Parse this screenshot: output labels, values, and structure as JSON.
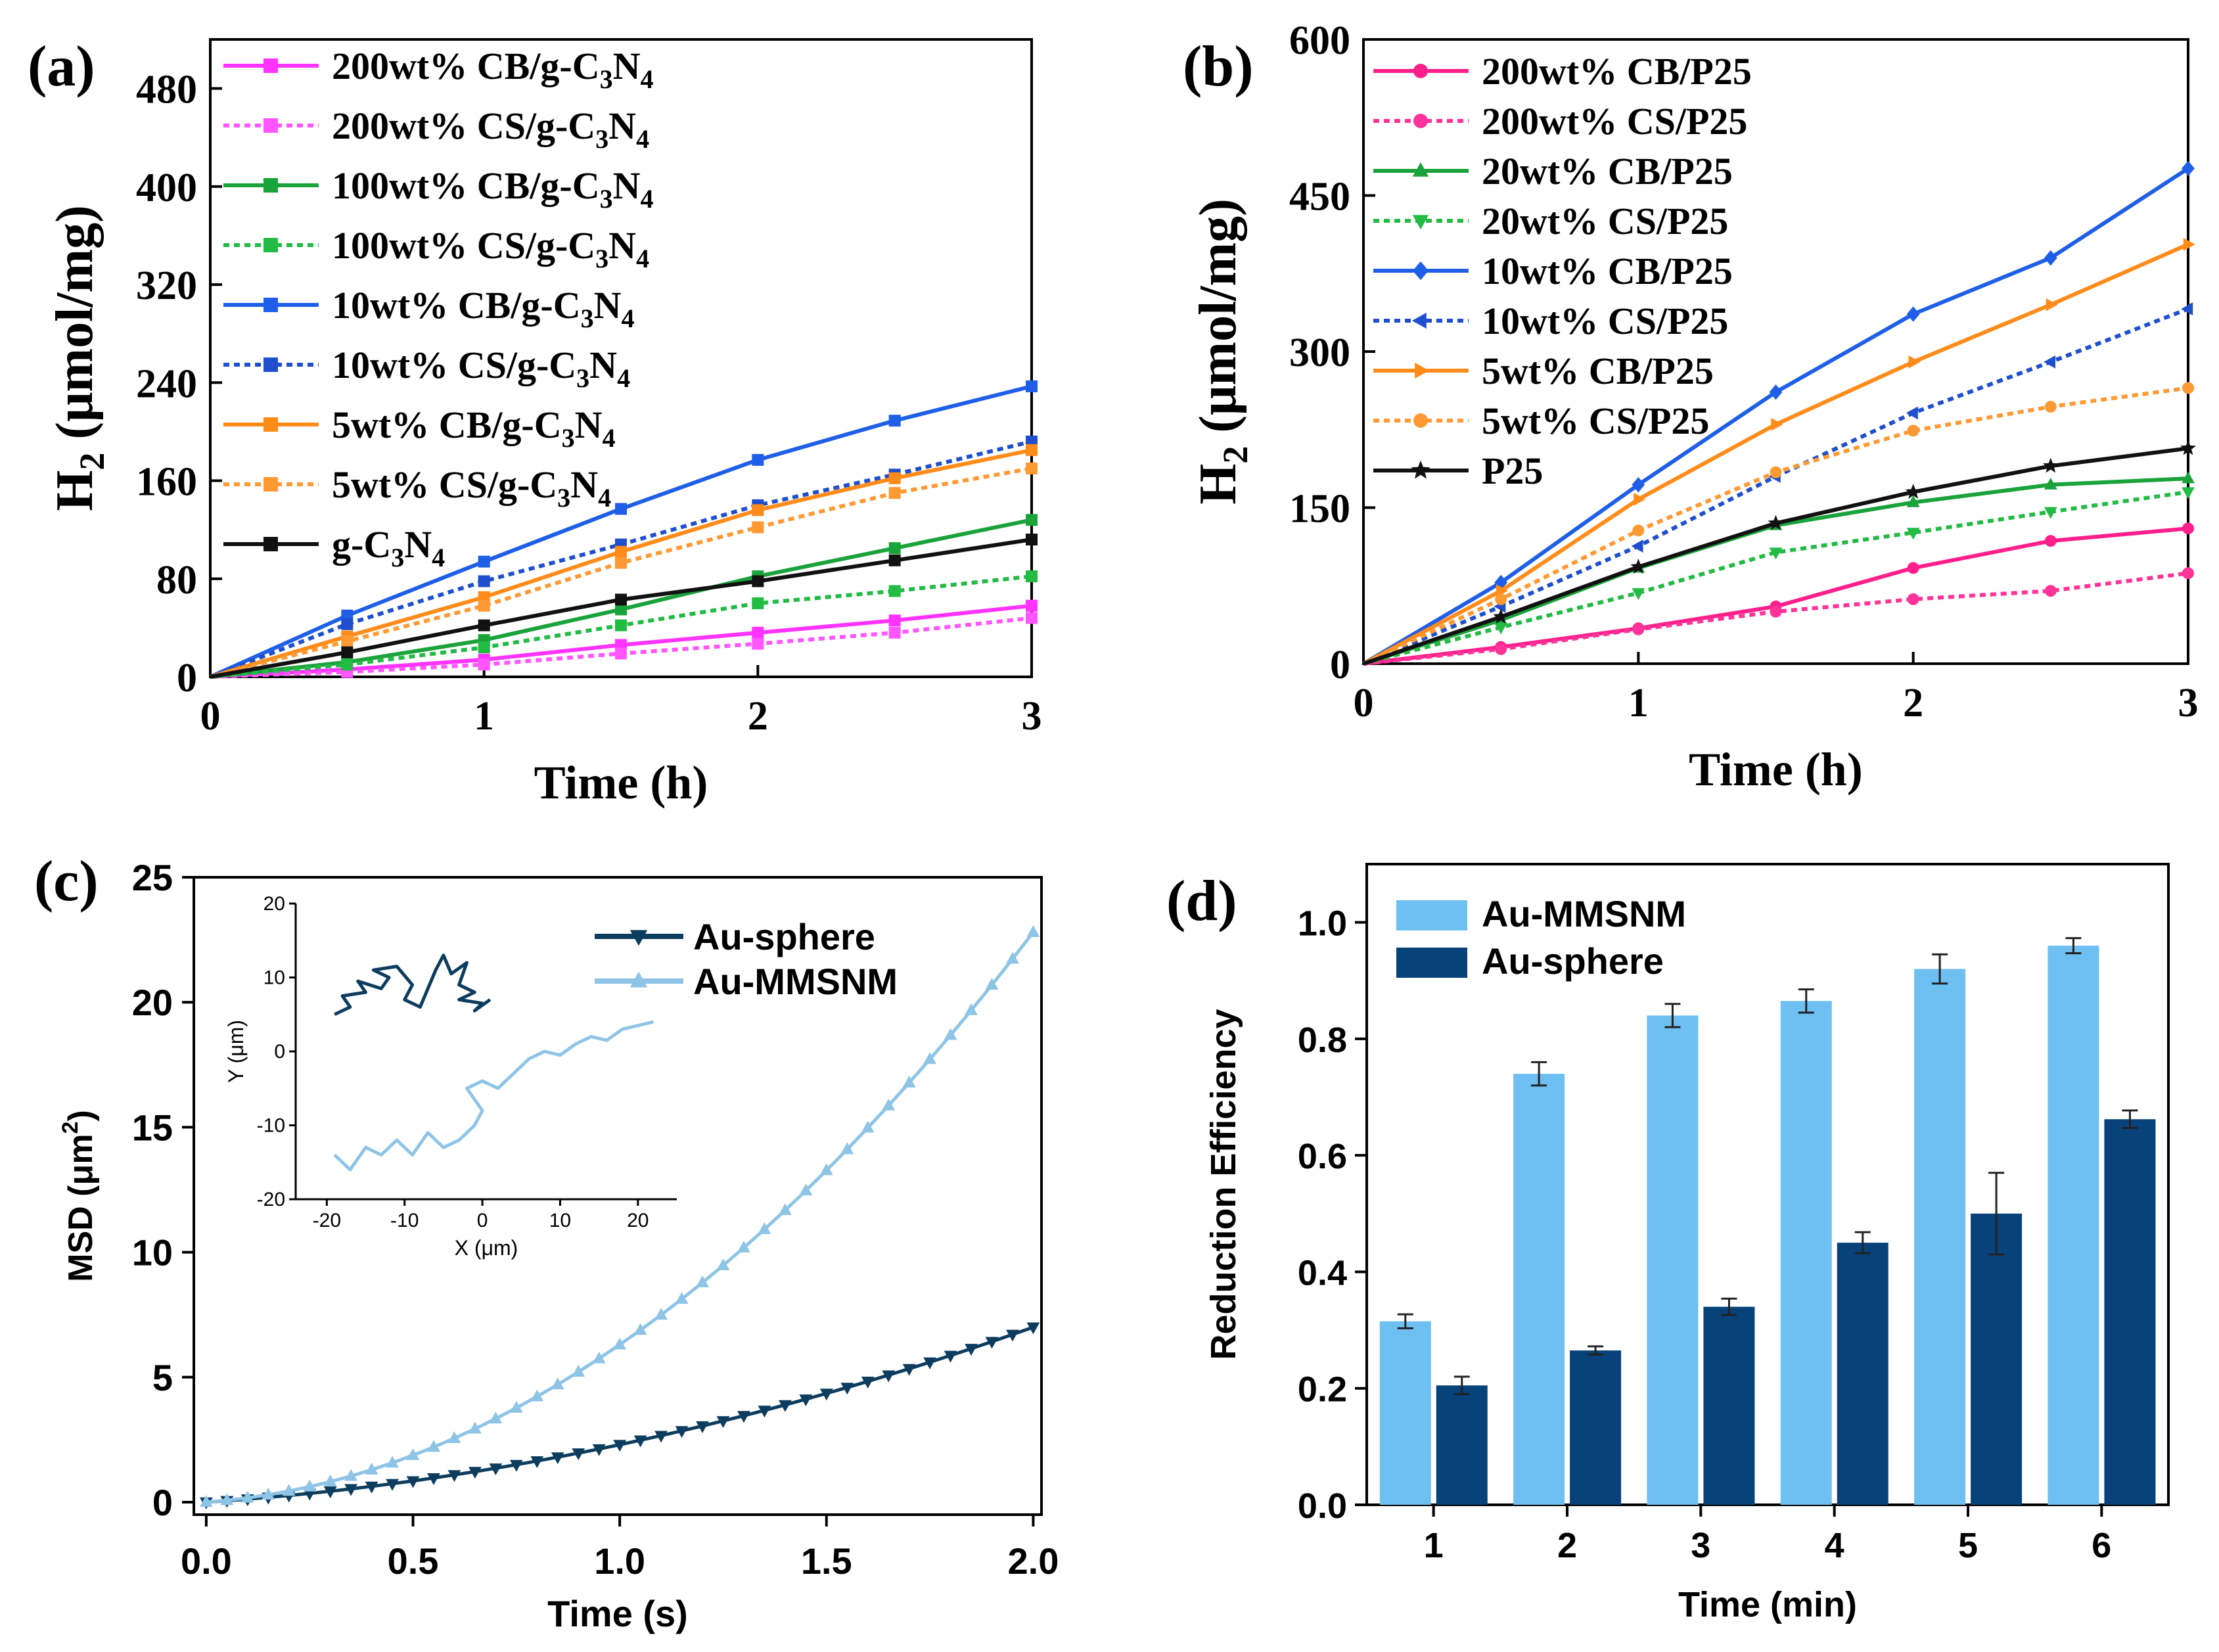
{
  "chart_data": [
    {
      "panel": "(a)",
      "type": "line",
      "xlabel": "Time (h)",
      "ylabel": {
        "main": "H",
        "sub": "2",
        "rest": " (μmol/mg)"
      },
      "xlim": [
        0,
        3
      ],
      "ylim": [
        0,
        520
      ],
      "xticks": [
        0,
        1,
        2,
        3
      ],
      "yticks": [
        0,
        80,
        160,
        240,
        320,
        400,
        480
      ],
      "x": [
        0,
        0.5,
        1,
        1.5,
        2,
        2.5,
        3
      ],
      "legend": {
        "position": "top-left"
      },
      "series": [
        {
          "name": "200wt% CB/g-C3N4",
          "label": {
            "pre": "200wt% CB/g-C",
            "s1": "3",
            "mid": "N",
            "s2": "4"
          },
          "color": "#ff33ff",
          "dashed": false,
          "marker": "square",
          "values": [
            0,
            6,
            14,
            26,
            36,
            46,
            58
          ]
        },
        {
          "name": "200wt% CS/g-C3N4",
          "label": {
            "pre": "200wt% CS/g-C",
            "s1": "3",
            "mid": "N",
            "s2": "4"
          },
          "color": "#ff55ff",
          "dashed": true,
          "marker": "square",
          "values": [
            0,
            4,
            10,
            19,
            27,
            36,
            48
          ]
        },
        {
          "name": "100wt% CB/g-C3N4",
          "label": {
            "pre": "100wt% CB/g-C",
            "s1": "3",
            "mid": "N",
            "s2": "4"
          },
          "color": "#1aa33a",
          "dashed": false,
          "marker": "square",
          "values": [
            0,
            12,
            30,
            55,
            82,
            105,
            128
          ]
        },
        {
          "name": "100wt% CS/g-C3N4",
          "label": {
            "pre": "100wt% CS/g-C",
            "s1": "3",
            "mid": "N",
            "s2": "4"
          },
          "color": "#22bb44",
          "dashed": true,
          "marker": "square",
          "values": [
            0,
            10,
            24,
            42,
            60,
            70,
            82
          ]
        },
        {
          "name": "10wt% CB/g-C3N4",
          "label": {
            "pre": "10wt% CB/g-C",
            "s1": "3",
            "mid": "N",
            "s2": "4"
          },
          "color": "#1f5fe8",
          "dashed": false,
          "marker": "square",
          "values": [
            0,
            50,
            94,
            137,
            177,
            209,
            237
          ]
        },
        {
          "name": "10wt% CS/g-C3N4",
          "label": {
            "pre": "10wt% CS/g-C",
            "s1": "3",
            "mid": "N",
            "s2": "4"
          },
          "color": "#1f4fcc",
          "dashed": true,
          "marker": "square",
          "values": [
            0,
            43,
            78,
            108,
            140,
            165,
            192
          ]
        },
        {
          "name": "5wt% CB/g-C3N4",
          "label": {
            "pre": "5wt% CB/g-C",
            "s1": "3",
            "mid": "N",
            "s2": "4"
          },
          "color": "#ff8c1a",
          "dashed": false,
          "marker": "square",
          "values": [
            0,
            33,
            65,
            102,
            136,
            162,
            185
          ]
        },
        {
          "name": "5wt% CS/g-C3N4",
          "label": {
            "pre": "5wt% CS/g-C",
            "s1": "3",
            "mid": "N",
            "s2": "4"
          },
          "color": "#ff9933",
          "dashed": true,
          "marker": "square",
          "values": [
            0,
            29,
            58,
            93,
            122,
            150,
            170
          ]
        },
        {
          "name": "g-C3N4",
          "label": {
            "pre": "g-C",
            "s1": "3",
            "mid": "N",
            "s2": "4"
          },
          "color": "#111111",
          "dashed": false,
          "marker": "square",
          "values": [
            0,
            20,
            42,
            63,
            78,
            95,
            112
          ]
        }
      ]
    },
    {
      "panel": "(b)",
      "type": "line",
      "xlabel": "Time (h)",
      "ylabel": {
        "main": "H",
        "sub": "2",
        "rest": " (μmol/mg)"
      },
      "xlim": [
        0,
        3
      ],
      "ylim": [
        0,
        600
      ],
      "xticks": [
        0,
        1,
        2,
        3
      ],
      "yticks": [
        0,
        150,
        300,
        450,
        600
      ],
      "x": [
        0,
        0.5,
        1,
        1.5,
        2,
        2.5,
        3
      ],
      "legend": {
        "position": "top-left"
      },
      "series": [
        {
          "name": "200wt% CB/P25",
          "color": "#ff1f8c",
          "dashed": false,
          "marker": "circle",
          "values": [
            0,
            16,
            34,
            55,
            92,
            118,
            130
          ]
        },
        {
          "name": "200wt% CS/P25",
          "color": "#ff3399",
          "dashed": true,
          "marker": "circle",
          "values": [
            0,
            14,
            33,
            50,
            62,
            70,
            87
          ]
        },
        {
          "name": "20wt% CB/P25",
          "color": "#1aa33a",
          "dashed": false,
          "marker": "triangle-up",
          "values": [
            0,
            42,
            92,
            133,
            155,
            172,
            178
          ]
        },
        {
          "name": "20wt% CS/P25",
          "color": "#22bb44",
          "dashed": true,
          "marker": "triangle-down",
          "values": [
            0,
            35,
            68,
            107,
            126,
            146,
            165
          ]
        },
        {
          "name": "10wt% CB/P25",
          "color": "#1f5fe8",
          "dashed": false,
          "marker": "diamond",
          "values": [
            0,
            78,
            172,
            261,
            336,
            390,
            476
          ]
        },
        {
          "name": "10wt% CS/P25",
          "color": "#1f4fcc",
          "dashed": true,
          "marker": "triangle-left",
          "values": [
            0,
            55,
            113,
            180,
            241,
            290,
            341
          ]
        },
        {
          "name": "5wt% CB/P25",
          "color": "#ff8c1a",
          "dashed": false,
          "marker": "triangle-right",
          "values": [
            0,
            70,
            158,
            230,
            290,
            345,
            403
          ]
        },
        {
          "name": "5wt% CS/P25",
          "color": "#ff9933",
          "dashed": true,
          "marker": "circle",
          "values": [
            0,
            62,
            128,
            184,
            224,
            247,
            265
          ]
        },
        {
          "name": "P25",
          "color": "#111111",
          "dashed": false,
          "marker": "star",
          "values": [
            0,
            45,
            93,
            135,
            165,
            190,
            207
          ]
        }
      ]
    },
    {
      "panel": "(c)",
      "type": "line",
      "xlabel": "Time (s)",
      "ylabel": {
        "main": "MSD (μm",
        "sup": "2",
        "rest": ")"
      },
      "xlim": [
        -0.03,
        2.02
      ],
      "ylim": [
        -0.5,
        25
      ],
      "xticks": [
        "0.0",
        "0.5",
        "1.0",
        "1.5",
        "2.0"
      ],
      "yticks": [
        0,
        5,
        10,
        15,
        20,
        25
      ],
      "legend": {
        "position": "top-right"
      },
      "series": [
        {
          "name": "Au-sphere",
          "color": "#0d3d5e",
          "marker": "triangle-down",
          "model": {
            "a": 1.1,
            "b": 1.2,
            "x_step": 0.05,
            "x_max": 2.0
          }
        },
        {
          "name": "Au-MMSNM",
          "color": "#8ec4e6",
          "marker": "triangle-up",
          "model": {
            "a": 1.2,
            "b": 5.1,
            "x_step": 0.05,
            "x_max": 2.0
          }
        }
      ],
      "inset": {
        "type": "scatter",
        "xlabel": "X (μm)",
        "ylabel": "Y (μm)",
        "xlim": [
          -24,
          25
        ],
        "ylim": [
          -20,
          20
        ],
        "xticks": [
          -20,
          -10,
          0,
          10,
          20
        ],
        "yticks": [
          -20,
          -10,
          0,
          10,
          20
        ],
        "tracks": [
          {
            "name": "Au-sphere track",
            "color": "#0d3d5e",
            "points": [
              [
                -19,
                5
              ],
              [
                -17,
                6
              ],
              [
                -18,
                7.5
              ],
              [
                -15,
                8
              ],
              [
                -16,
                9.5
              ],
              [
                -13,
                8.5
              ],
              [
                -12,
                10
              ],
              [
                -14,
                11
              ],
              [
                -11,
                11.5
              ],
              [
                -9,
                9
              ],
              [
                -10,
                7
              ],
              [
                -8,
                6
              ],
              [
                -7,
                8.5
              ],
              [
                -6,
                11
              ],
              [
                -5,
                13
              ],
              [
                -4,
                10.5
              ],
              [
                -2,
                12
              ],
              [
                -3,
                9
              ],
              [
                -1,
                8
              ],
              [
                -3,
                7
              ],
              [
                0,
                6.5
              ],
              [
                -1,
                5.5
              ],
              [
                1,
                7
              ]
            ]
          },
          {
            "name": "Au-MMSNM track",
            "color": "#8ec4e6",
            "points": [
              [
                -19,
                -14
              ],
              [
                -17,
                -16
              ],
              [
                -15,
                -13
              ],
              [
                -13,
                -14
              ],
              [
                -11,
                -12
              ],
              [
                -9,
                -14
              ],
              [
                -7,
                -11
              ],
              [
                -5,
                -13
              ],
              [
                -3,
                -12
              ],
              [
                -1,
                -10
              ],
              [
                0,
                -8
              ],
              [
                -2,
                -5
              ],
              [
                0,
                -4
              ],
              [
                2,
                -5
              ],
              [
                4,
                -3
              ],
              [
                6,
                -1
              ],
              [
                8,
                0
              ],
              [
                10,
                -0.5
              ],
              [
                12,
                1
              ],
              [
                14,
                2
              ],
              [
                16,
                1.5
              ],
              [
                18,
                3
              ],
              [
                20,
                3.5
              ],
              [
                22,
                4
              ]
            ]
          }
        ]
      }
    },
    {
      "panel": "(d)",
      "type": "bar",
      "xlabel": "Time (min)",
      "ylabel": "Reduction Efficiency",
      "ylim": [
        0,
        1.1
      ],
      "yticks": [
        "0.0",
        "0.2",
        "0.4",
        "0.6",
        "0.8",
        "1.0"
      ],
      "categories": [
        "1",
        "2",
        "3",
        "4",
        "5",
        "6"
      ],
      "legend": {
        "position": "top-left"
      },
      "series": [
        {
          "name": "Au-MMSNM",
          "color": "#6ebff2",
          "values": [
            0.315,
            0.74,
            0.84,
            0.865,
            0.92,
            0.96
          ],
          "errors": [
            0.012,
            0.02,
            0.02,
            0.02,
            0.025,
            0.013
          ]
        },
        {
          "name": "Au-sphere",
          "color": "#08427a",
          "values": [
            0.205,
            0.265,
            0.34,
            0.45,
            0.5,
            0.662
          ],
          "errors": [
            0.015,
            0.007,
            0.014,
            0.018,
            0.07,
            0.015
          ]
        }
      ]
    }
  ],
  "panels": {
    "a": "(a)",
    "b": "(b)",
    "c": "(c)",
    "d": "(d)"
  }
}
